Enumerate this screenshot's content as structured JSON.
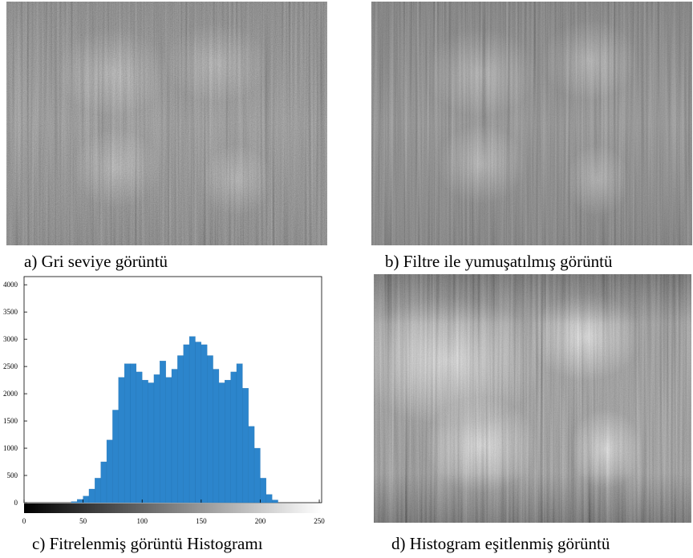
{
  "captions": [
    "a) Gri seviye görüntü",
    "b) Filtre ile yumuşatılmış görüntü",
    "c) Fitrelenmiş görüntü Histogramı",
    "d) Histogram eşitlenmiş görüntü"
  ],
  "chart_data": {
    "type": "histogram",
    "color": "#2c85cc",
    "bins": [
      40,
      45,
      50,
      55,
      60,
      65,
      70,
      75,
      80,
      85,
      90,
      95,
      100,
      105,
      110,
      115,
      120,
      125,
      130,
      135,
      140,
      145,
      150,
      155,
      160,
      165,
      170,
      175,
      180,
      185,
      190,
      195,
      200,
      205,
      210,
      215
    ],
    "counts": [
      20,
      60,
      120,
      250,
      450,
      750,
      1150,
      1700,
      2300,
      2550,
      2550,
      2400,
      2250,
      2200,
      2350,
      2600,
      2300,
      2450,
      2700,
      2900,
      3050,
      2950,
      2900,
      2700,
      2450,
      2200,
      2250,
      2400,
      2550,
      2100,
      1400,
      1000,
      450,
      150,
      50
    ],
    "xlim": [
      0,
      252
    ],
    "xticks": [
      0,
      50,
      100,
      150,
      200,
      250
    ],
    "ylim": [
      0,
      4150
    ],
    "yticks": [
      0,
      500,
      1000,
      1500,
      2000,
      2500,
      3000,
      3500,
      4000
    ]
  }
}
